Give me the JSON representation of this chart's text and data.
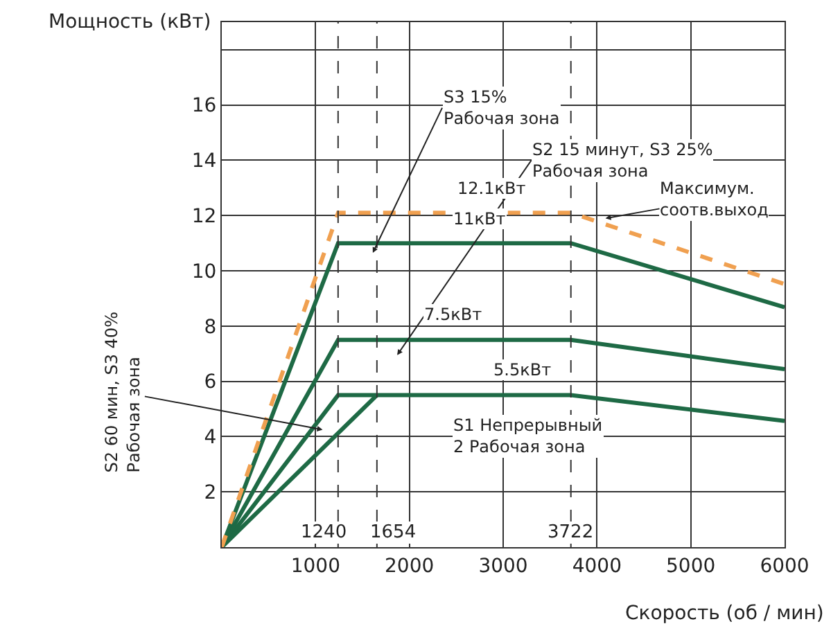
{
  "chart_data": {
    "type": "line",
    "ylabel": "Мощность (кВт)",
    "xlabel": "Скорость (об / мин)",
    "series": [
      {
        "color": "#1e6a45",
        "x": [
          0,
          1654
        ],
        "values": [
          0,
          5.5
        ]
      },
      {
        "color": "#1e6a45",
        "x": [
          0,
          1240,
          3722,
          6000
        ],
        "values": [
          0,
          5.5,
          5.5,
          4.57
        ]
      },
      {
        "color": "#1e6a45",
        "x": [
          0,
          1240,
          3722,
          6000
        ],
        "values": [
          0,
          7.5,
          7.5,
          6.44
        ]
      },
      {
        "color": "#1e6a45",
        "x": [
          0,
          1240,
          3722,
          6000
        ],
        "values": [
          0,
          11,
          11,
          8.68
        ]
      },
      {
        "color": "#f0a050",
        "x": [
          0,
          1240,
          3722,
          6000
        ],
        "values": [
          0,
          12.1,
          12.1,
          9.52
        ],
        "line_style": "dashed"
      }
    ],
    "xlim": [
      0,
      6000
    ],
    "xticks": [
      1000,
      2000,
      3000,
      4000,
      5000,
      6000
    ],
    "ylim": [
      0,
      19
    ],
    "yticks": [
      2,
      4,
      6,
      8,
      10,
      12,
      14,
      16,
      {
        "value": 18,
        "label": null
      }
    ],
    "grid": true,
    "marker": "none",
    "line_style": "solid",
    "ref_lines": [
      {
        "axis": "x",
        "value": 1240,
        "label": "1240",
        "line_style": "dashed"
      },
      {
        "axis": "x",
        "value": 1654,
        "label": "1654",
        "line_style": "dashed"
      },
      {
        "axis": "x",
        "value": 3722,
        "label": "3722",
        "line_style": "dashed"
      }
    ],
    "annotations": [
      {
        "text": "S3 15%\nРабочая зона",
        "x": 1610,
        "y": 10.65
      },
      "S2 15 минут, S3 25%\nРабочая зона",
      {
        "text": "Максимум.\nсоотв.выход",
        "x": 4090,
        "y": 11.9
      },
      "S2 60 мин, S3 40%\nРабочая зона",
      "S1 Непрерывный\n2 Рабочая зона",
      {
        "text": "12.1кВт",
        "x": 2880,
        "y": 12.1
      },
      {
        "text": "11кВт",
        "x": 2750,
        "y": 11
      },
      {
        "text": "7.5кВт",
        "x": 2470,
        "y": 7.5
      },
      {
        "text": "5.5кВт",
        "x": 3200,
        "y": 5.5
      }
    ]
  }
}
